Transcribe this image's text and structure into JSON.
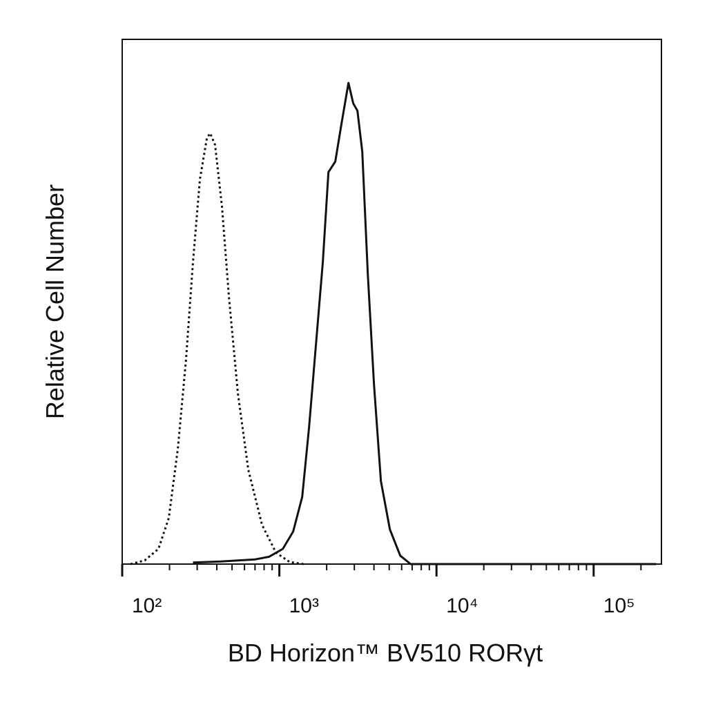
{
  "chart_data": {
    "type": "line",
    "xlabel": "BD Horizon™ BV510  RORγt",
    "ylabel": "Relative Cell Number",
    "xscale": "log",
    "xlim": [
      100,
      270000
    ],
    "ylim": [
      0,
      100
    ],
    "xticks": [
      {
        "value": 100,
        "label": "10²"
      },
      {
        "value": 1000,
        "label": "10³"
      },
      {
        "value": 10000,
        "label": "10⁴"
      },
      {
        "value": 100000,
        "label": "10⁵"
      }
    ],
    "series": [
      {
        "color": "#111111",
        "dash": "dotted",
        "x": [
          113,
          139,
          170,
          198,
          226,
          255,
          282,
          312,
          346,
          363,
          390,
          432,
          478,
          545,
          634,
          776,
          951,
          1164,
          1425
        ],
        "values": [
          0,
          0.7,
          2.9,
          8.8,
          22.0,
          39.1,
          57.5,
          73.3,
          81.2,
          82.1,
          79.9,
          68.0,
          50.9,
          32.5,
          18.0,
          7.5,
          2.2,
          0.4,
          0
        ]
      },
      {
        "color": "#111111",
        "dash": "solid",
        "x": [
          282,
          423,
          545,
          702,
          859,
          1052,
          1224,
          1397,
          1545,
          1710,
          1892,
          2052,
          2270,
          2487,
          2752,
          2953,
          3139,
          3370,
          3653,
          4002,
          4429,
          5051,
          5878,
          6843,
          250000
        ],
        "values": [
          0.3,
          0.5,
          0.7,
          0.9,
          1.4,
          2.9,
          6.2,
          12.8,
          26.0,
          41.8,
          57.6,
          74.7,
          76.7,
          84.0,
          91.7,
          87.8,
          86.4,
          78.6,
          55.3,
          34.2,
          15.8,
          6.6,
          1.6,
          0,
          0
        ]
      }
    ]
  }
}
